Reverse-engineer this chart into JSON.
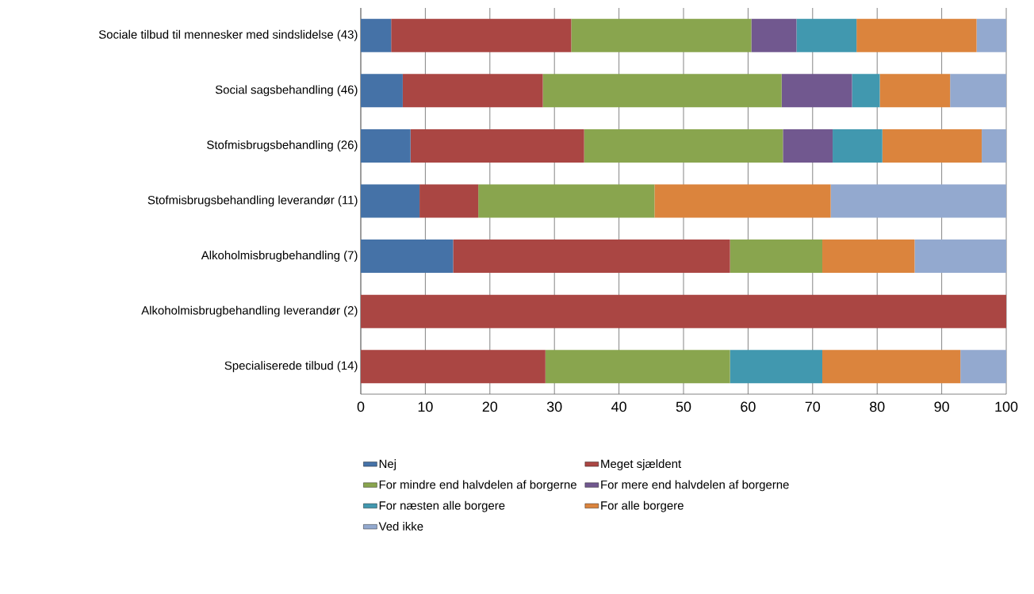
{
  "chart_data": {
    "type": "bar",
    "orientation": "horizontal",
    "stacked": true,
    "categories": [
      "Sociale tilbud til mennesker med sindslidelse (43)",
      "Social sagsbehandling (46)",
      "Stofmisbrugsbehandling (26)",
      "Stofmisbrugsbehandling leverandør (11)",
      "Alkoholmisbrugbehandling (7)",
      "Alkoholmisbrugbehandling leverandør (2)",
      "Specialiserede tilbud (14)"
    ],
    "series": [
      {
        "name": "Nej",
        "color": "#4572a7",
        "values": [
          4.7,
          6.5,
          7.7,
          9.1,
          14.3,
          0,
          0
        ]
      },
      {
        "name": "Meget sjældent",
        "color": "#aa4643",
        "values": [
          27.9,
          21.7,
          26.9,
          9.1,
          42.9,
          100,
          28.6
        ]
      },
      {
        "name": "For mindre end halvdelen af borgerne",
        "color": "#89a54e",
        "values": [
          27.9,
          37.0,
          30.8,
          27.3,
          14.3,
          0,
          28.6
        ]
      },
      {
        "name": "For mere end halvdelen af borgerne",
        "color": "#71588f",
        "values": [
          7.0,
          10.9,
          7.7,
          0,
          0,
          0,
          0
        ]
      },
      {
        "name": "For næsten alle borgere",
        "color": "#4198af",
        "values": [
          9.3,
          4.3,
          7.7,
          0,
          0,
          0,
          14.3
        ]
      },
      {
        "name": "For alle borgere",
        "color": "#db843d",
        "values": [
          18.6,
          10.9,
          15.4,
          27.3,
          14.3,
          0,
          21.4
        ]
      },
      {
        "name": "Ved ikke",
        "color": "#93a9cf",
        "values": [
          4.7,
          8.7,
          3.8,
          27.3,
          14.3,
          0,
          7.1
        ]
      }
    ],
    "xlim": [
      0,
      100
    ],
    "xticks": [
      0,
      10,
      20,
      30,
      40,
      50,
      60,
      70,
      80,
      90,
      100
    ],
    "grid": "x",
    "legend": "bottom"
  }
}
